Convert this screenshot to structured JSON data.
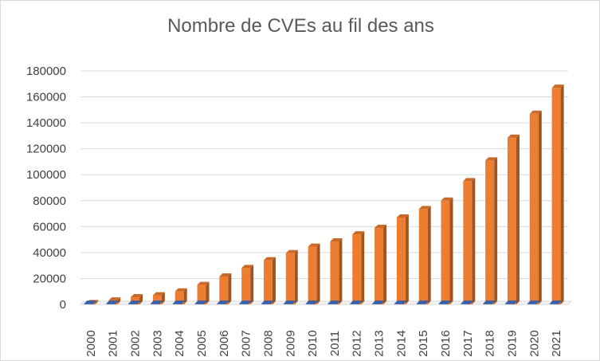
{
  "chart_data": {
    "type": "bar",
    "title": "Nombre de CVEs au fil des ans",
    "xlabel": "",
    "ylabel": "",
    "ylim": [
      0,
      180000
    ],
    "yticks": [
      "0",
      "20000",
      "40000",
      "60000",
      "80000",
      "100000",
      "120000",
      "140000",
      "160000",
      "180000"
    ],
    "ytick_values": [
      0,
      20000,
      40000,
      60000,
      80000,
      100000,
      120000,
      140000,
      160000,
      180000
    ],
    "categories": [
      "2000",
      "2001",
      "2002",
      "2003",
      "2004",
      "2005",
      "2006",
      "2007",
      "2008",
      "2009",
      "2010",
      "2011",
      "2012",
      "2013",
      "2014",
      "2015",
      "2016",
      "2017",
      "2018",
      "2019",
      "2020",
      "2021"
    ],
    "series": [
      {
        "values": [
          1000,
          3000,
          5500,
          7000,
          10000,
          15000,
          21500,
          28000,
          34000,
          39500,
          44500,
          48500,
          54000,
          59000,
          67000,
          73500,
          80000,
          95000,
          111000,
          128500,
          147000,
          167000
        ],
        "color": "#ed7d31"
      },
      {
        "values": [
          500,
          500,
          500,
          500,
          500,
          500,
          500,
          500,
          500,
          500,
          500,
          500,
          500,
          500,
          500,
          500,
          500,
          500,
          500,
          500,
          500,
          500
        ],
        "color": "#4472c4"
      }
    ],
    "grid": true,
    "legend": "none",
    "style": "3d-column"
  }
}
